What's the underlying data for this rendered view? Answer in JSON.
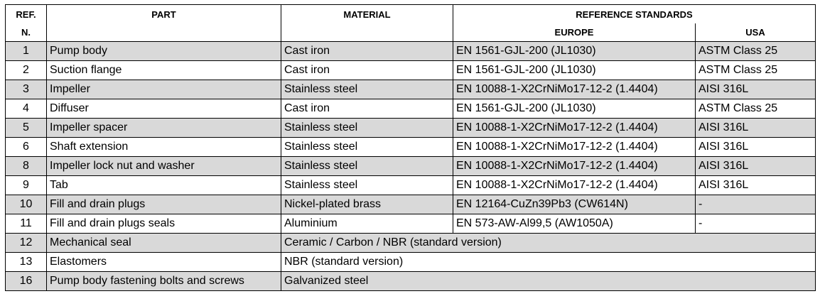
{
  "headers": {
    "ref_line1": "REF.",
    "ref_line2": "N.",
    "part": "PART",
    "material": "MATERIAL",
    "reference_standards": "REFERENCE STANDARDS",
    "europe": "EUROPE",
    "usa": "USA"
  },
  "rows": [
    {
      "ref": "1",
      "part": "Pump body",
      "material": "Cast iron",
      "europe": "EN 1561-GJL-200 (JL1030)",
      "usa": "ASTM Class 25"
    },
    {
      "ref": "2",
      "part": "Suction flange",
      "material": "Cast iron",
      "europe": "EN 1561-GJL-200 (JL1030)",
      "usa": "ASTM Class 25"
    },
    {
      "ref": "3",
      "part": "Impeller",
      "material": "Stainless steel",
      "europe": "EN 10088-1-X2CrNiMo17-12-2 (1.4404)",
      "usa": "AISI 316L"
    },
    {
      "ref": "4",
      "part": "Diffuser",
      "material": "Cast iron",
      "europe": "EN 1561-GJL-200 (JL1030)",
      "usa": "ASTM Class 25"
    },
    {
      "ref": "5",
      "part": "Impeller spacer",
      "material": "Stainless steel",
      "europe": "EN 10088-1-X2CrNiMo17-12-2 (1.4404)",
      "usa": "AISI 316L"
    },
    {
      "ref": "6",
      "part": "Shaft extension",
      "material": "Stainless steel",
      "europe": "EN 10088-1-X2CrNiMo17-12-2 (1.4404)",
      "usa": "AISI 316L"
    },
    {
      "ref": "8",
      "part": "Impeller lock nut and washer",
      "material": "Stainless steel",
      "europe": "EN 10088-1-X2CrNiMo17-12-2 (1.4404)",
      "usa": "AISI 316L"
    },
    {
      "ref": "9",
      "part": "Tab",
      "material": "Stainless steel",
      "europe": "EN 10088-1-X2CrNiMo17-12-2 (1.4404)",
      "usa": "AISI 316L"
    },
    {
      "ref": "10",
      "part": "Fill and drain plugs",
      "material": "Nickel-plated brass",
      "europe": "EN 12164-CuZn39Pb3 (CW614N)",
      "usa": "-"
    },
    {
      "ref": "11",
      "part": "Fill and drain plugs seals",
      "material": "Aluminium",
      "europe": "EN 573-AW-Al99,5 (AW1050A)",
      "usa": "-"
    }
  ],
  "merged_rows": [
    {
      "ref": "12",
      "part": "Mechanical seal",
      "material": "Ceramic / Carbon / NBR (standard version)"
    },
    {
      "ref": "13",
      "part": "Elastomers",
      "material": "NBR (standard version)"
    },
    {
      "ref": "16",
      "part": "Pump body fastening bolts and screws",
      "material": "Galvanized steel"
    }
  ],
  "colors": {
    "shaded_row": "#d9d9d9",
    "border": "#000000"
  }
}
